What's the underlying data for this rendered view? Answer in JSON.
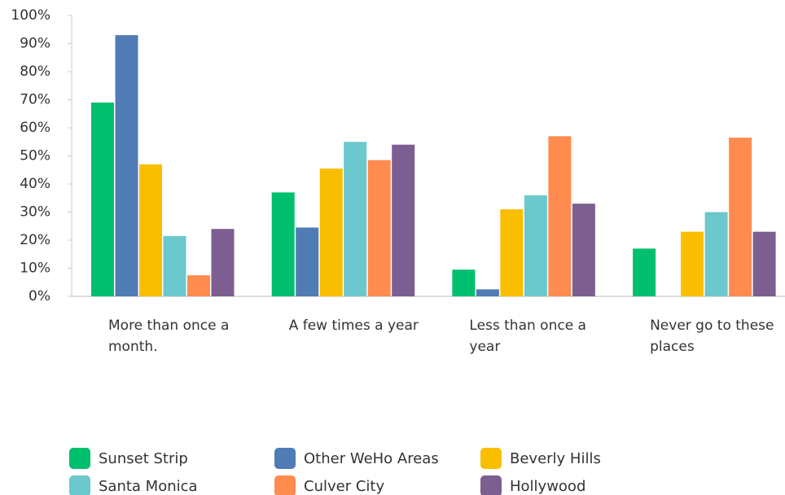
{
  "chart_data": {
    "type": "bar",
    "categories": [
      "More than once a month.",
      "A few times a year",
      "Less than once a year",
      "Never go to these places"
    ],
    "series": [
      {
        "name": "Sunset Strip",
        "color": "#00bf6f",
        "values": [
          69,
          37,
          9.5,
          17
        ]
      },
      {
        "name": "Other WeHo Areas",
        "color": "#507cb6",
        "values": [
          93,
          24.5,
          2.5,
          0
        ]
      },
      {
        "name": "Beverly Hills",
        "color": "#f9be00",
        "values": [
          47,
          45.5,
          31,
          23
        ]
      },
      {
        "name": "Santa Monica",
        "color": "#6bc8cd",
        "values": [
          21.5,
          55,
          36,
          30
        ]
      },
      {
        "name": "Culver City",
        "color": "#ff8b4f",
        "values": [
          7.5,
          48.5,
          57,
          56.5
        ]
      },
      {
        "name": "Hollywood",
        "color": "#7d5e90",
        "values": [
          24,
          54,
          33,
          23
        ]
      }
    ],
    "ylim": [
      0,
      100
    ],
    "yticks": [
      {
        "value": 0,
        "label": "0%"
      },
      {
        "value": 10,
        "label": "10%"
      },
      {
        "value": 20,
        "label": "20%"
      },
      {
        "value": 30,
        "label": "30%"
      },
      {
        "value": 40,
        "label": "40%"
      },
      {
        "value": 50,
        "label": "50%"
      },
      {
        "value": 60,
        "label": "60%"
      },
      {
        "value": 70,
        "label": "70%"
      },
      {
        "value": 80,
        "label": "80%"
      },
      {
        "value": 90,
        "label": "90%"
      },
      {
        "value": 100,
        "label": "100%"
      }
    ],
    "grid": false
  }
}
